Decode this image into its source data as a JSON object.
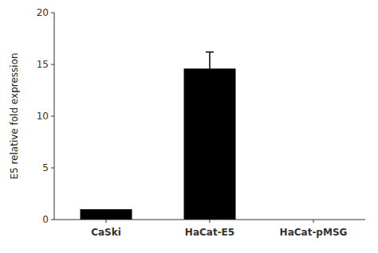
{
  "chart_data": {
    "type": "bar",
    "categories": [
      "CaSki",
      "HaCat-E5",
      "HaCat-pMSG"
    ],
    "values": [
      1.0,
      14.6,
      0.0
    ],
    "errors": [
      0.0,
      1.6,
      0.0
    ],
    "color": "#000000",
    "ylabel": "E5 relative fold expression",
    "ylim": [
      0,
      20
    ],
    "yticks": [
      0,
      5,
      10,
      15,
      20
    ],
    "grid": false
  }
}
